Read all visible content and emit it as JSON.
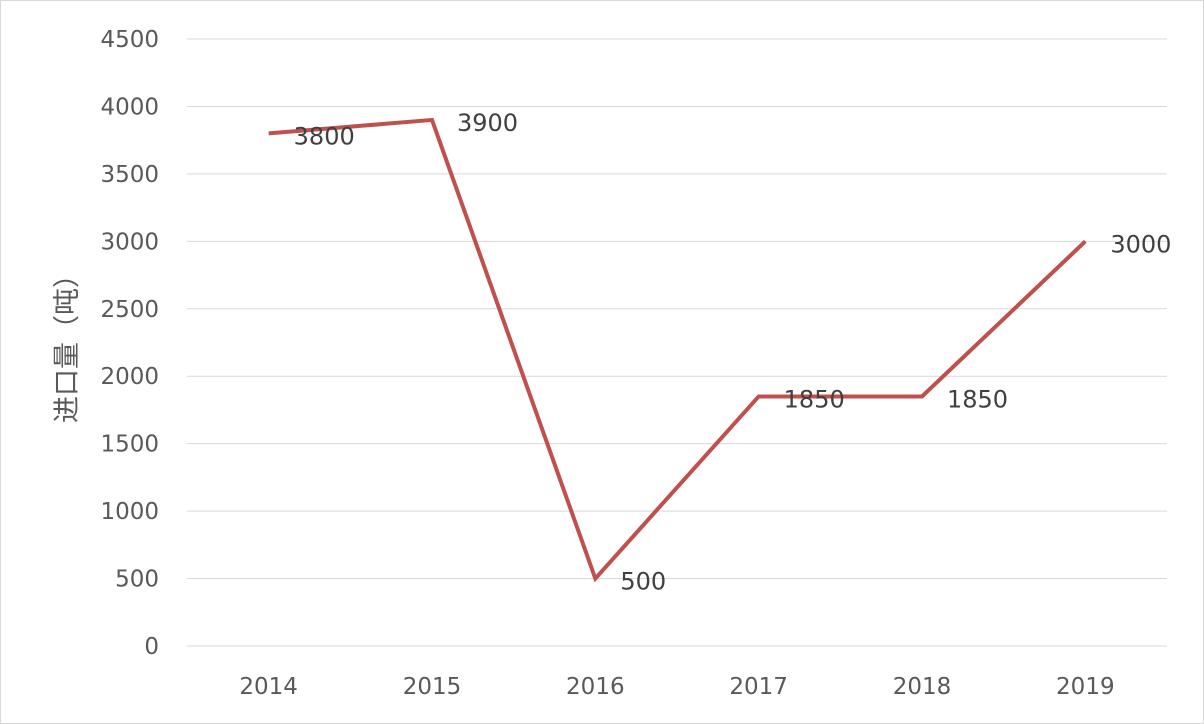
{
  "chart_data": {
    "type": "line",
    "title": "",
    "xlabel": "",
    "ylabel": "进口量（吨）",
    "categories": [
      "2014",
      "2015",
      "2016",
      "2017",
      "2018",
      "2019"
    ],
    "series": [
      {
        "values": [
          3800,
          3900,
          500,
          1850,
          1850,
          3000
        ]
      }
    ],
    "data_labels": [
      "3800",
      "3900",
      "500",
      "1850",
      "1850",
      "3000"
    ],
    "ylim": [
      0,
      4500
    ],
    "yticks": [
      "0",
      "500",
      "1000",
      "1500",
      "2000",
      "2500",
      "3000",
      "3500",
      "4000",
      "4500"
    ],
    "grid": true,
    "legend": "none",
    "colors": {
      "line": "#c0504d",
      "grid": "#d9d9d9",
      "tick_text": "#595959",
      "label_text": "#404040"
    }
  }
}
